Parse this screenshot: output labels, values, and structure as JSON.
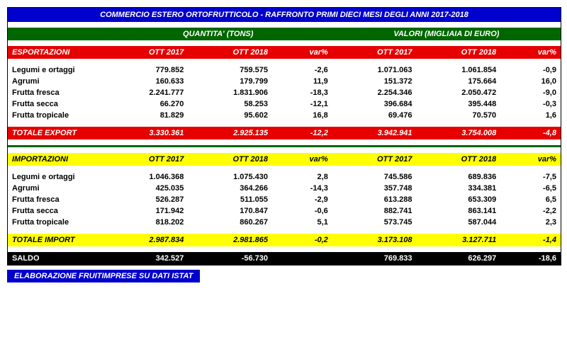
{
  "title": "COMMERCIO ESTERO ORTOFRUTTICOLO - RAFFRONTO PRIMI DIECI MESI DEGLI ANNI 2017-2018",
  "headers": {
    "qty": "QUANTITA' (TONS)",
    "val": "VALORI (MIGLIAIA DI EURO)"
  },
  "cols": {
    "c1": "OTT 2017",
    "c2": "OTT 2018",
    "c3": "var%",
    "c4": "OTT 2017",
    "c5": "OTT 2018",
    "c6": "var%"
  },
  "export": {
    "label": "ESPORTAZIONI",
    "rows": [
      {
        "name": "Legumi e ortaggi",
        "q17": "779.852",
        "q18": "759.575",
        "qv": "-2,6",
        "v17": "1.071.063",
        "v18": "1.061.854",
        "vv": "-0,9"
      },
      {
        "name": "Agrumi",
        "q17": "160.633",
        "q18": "179.799",
        "qv": "11,9",
        "v17": "151.372",
        "v18": "175.664",
        "vv": "16,0"
      },
      {
        "name": "Frutta fresca",
        "q17": "2.241.777",
        "q18": "1.831.906",
        "qv": "-18,3",
        "v17": "2.254.346",
        "v18": "2.050.472",
        "vv": "-9,0"
      },
      {
        "name": "Frutta secca",
        "q17": "66.270",
        "q18": "58.253",
        "qv": "-12,1",
        "v17": "396.684",
        "v18": "395.448",
        "vv": "-0,3"
      },
      {
        "name": "Frutta tropicale",
        "q17": "81.829",
        "q18": "95.602",
        "qv": "16,8",
        "v17": "69.476",
        "v18": "70.570",
        "vv": "1,6"
      }
    ],
    "total": {
      "name": "TOTALE EXPORT",
      "q17": "3.330.361",
      "q18": "2.925.135",
      "qv": "-12,2",
      "v17": "3.942.941",
      "v18": "3.754.008",
      "vv": "-4,8"
    }
  },
  "import": {
    "label": "IMPORTAZIONI",
    "rows": [
      {
        "name": "Legumi e ortaggi",
        "q17": "1.046.368",
        "q18": "1.075.430",
        "qv": "2,8",
        "v17": "745.586",
        "v18": "689.836",
        "vv": "-7,5"
      },
      {
        "name": "Agrumi",
        "q17": "425.035",
        "q18": "364.266",
        "qv": "-14,3",
        "v17": "357.748",
        "v18": "334.381",
        "vv": "-6,5"
      },
      {
        "name": "Frutta fresca",
        "q17": "526.287",
        "q18": "511.055",
        "qv": "-2,9",
        "v17": "613.288",
        "v18": "653.309",
        "vv": "6,5"
      },
      {
        "name": "Frutta secca",
        "q17": "171.942",
        "q18": "170.847",
        "qv": "-0,6",
        "v17": "882.741",
        "v18": "863.141",
        "vv": "-2,2"
      },
      {
        "name": "Frutta tropicale",
        "q17": "818.202",
        "q18": "860.267",
        "qv": "5,1",
        "v17": "573.745",
        "v18": "587.044",
        "vv": "2,3"
      }
    ],
    "total": {
      "name": "TOTALE IMPORT",
      "q17": "2.987.834",
      "q18": "2.981.865",
      "qv": "-0,2",
      "v17": "3.173.108",
      "v18": "3.127.711",
      "vv": "-1,4"
    }
  },
  "saldo": {
    "name": "SALDO",
    "q17": "342.527",
    "q18": "-56.730",
    "qv": "",
    "v17": "769.833",
    "v18": "626.297",
    "vv": "-18,6"
  },
  "footer": "ELABORAZIONE FRUITIMPRESE SU DATI ISTAT"
}
